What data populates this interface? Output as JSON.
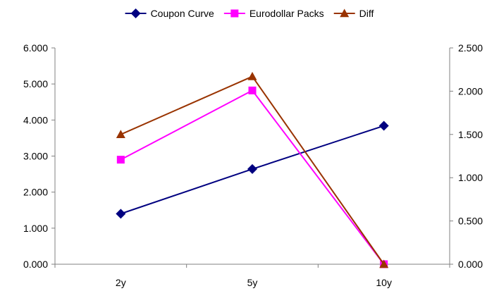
{
  "chart_data": {
    "type": "line",
    "categories": [
      "2y",
      "5y",
      "10y"
    ],
    "y_left": {
      "min": 0,
      "max": 6,
      "ticks": [
        0,
        1,
        2,
        3,
        4,
        5,
        6
      ],
      "tick_labels": [
        "0.000",
        "1.000",
        "2.000",
        "3.000",
        "4.000",
        "5.000",
        "6.000"
      ]
    },
    "y_right": {
      "min": 0,
      "max": 2.5,
      "ticks": [
        0,
        0.5,
        1,
        1.5,
        2,
        2.5
      ],
      "tick_labels": [
        "0.000",
        "0.500",
        "1.000",
        "1.500",
        "2.000",
        "2.500"
      ]
    },
    "series": [
      {
        "name": "Coupon Curve",
        "axis": "left",
        "marker": "diamond",
        "color": "#000080",
        "values": [
          1.4,
          2.64,
          3.84
        ]
      },
      {
        "name": "Eurodollar Packs",
        "axis": "left",
        "marker": "square",
        "color": "#FF00FF",
        "values": [
          2.9,
          4.82,
          0
        ]
      },
      {
        "name": "Diff",
        "axis": "right",
        "marker": "triangle",
        "color": "#993300",
        "values": [
          1.5,
          2.17,
          0
        ]
      }
    ],
    "legend_position": "top",
    "grid": false
  }
}
